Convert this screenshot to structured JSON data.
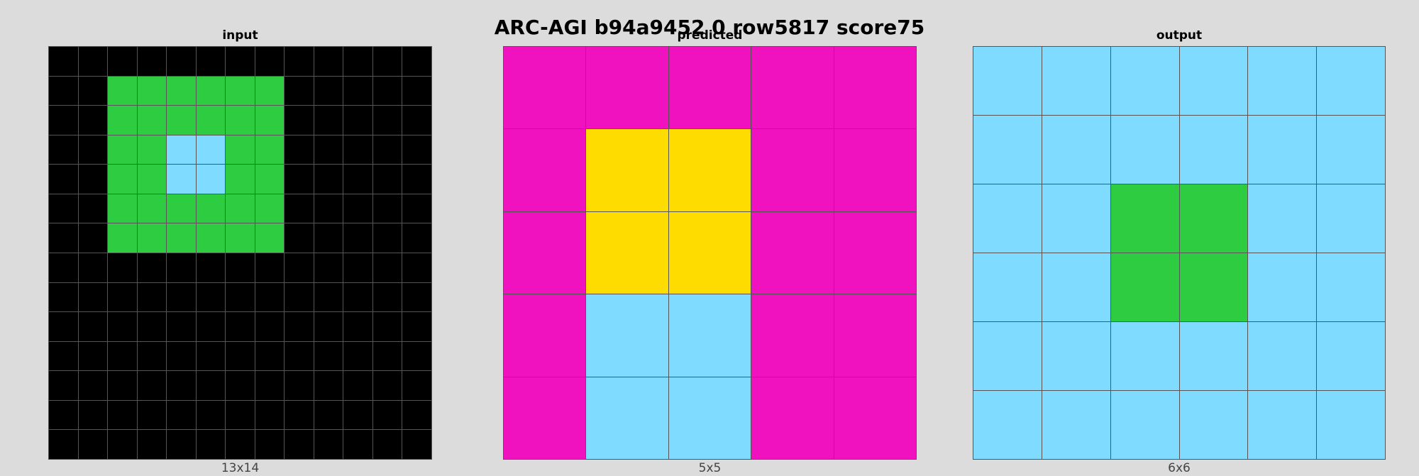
{
  "title": "ARC-AGI b94a9452 0 row5817 score75",
  "palette": {
    "0": "#000000",
    "3": "#2ECC40",
    "4": "#FFDC00",
    "6": "#F012BE",
    "8": "#7FDBFF"
  },
  "panels": [
    {
      "key": "input",
      "label": "input",
      "size_label": "13x14",
      "cols": 13,
      "rows": 14,
      "cells": [
        [
          0,
          0,
          0,
          0,
          0,
          0,
          0,
          0,
          0,
          0,
          0,
          0,
          0
        ],
        [
          0,
          0,
          3,
          3,
          3,
          3,
          3,
          3,
          0,
          0,
          0,
          0,
          0
        ],
        [
          0,
          0,
          3,
          3,
          3,
          3,
          3,
          3,
          0,
          0,
          0,
          0,
          0
        ],
        [
          0,
          0,
          3,
          3,
          8,
          8,
          3,
          3,
          0,
          0,
          0,
          0,
          0
        ],
        [
          0,
          0,
          3,
          3,
          8,
          8,
          3,
          3,
          0,
          0,
          0,
          0,
          0
        ],
        [
          0,
          0,
          3,
          3,
          3,
          3,
          3,
          3,
          0,
          0,
          0,
          0,
          0
        ],
        [
          0,
          0,
          3,
          3,
          3,
          3,
          3,
          3,
          0,
          0,
          0,
          0,
          0
        ],
        [
          0,
          0,
          0,
          0,
          0,
          0,
          0,
          0,
          0,
          0,
          0,
          0,
          0
        ],
        [
          0,
          0,
          0,
          0,
          0,
          0,
          0,
          0,
          0,
          0,
          0,
          0,
          0
        ],
        [
          0,
          0,
          0,
          0,
          0,
          0,
          0,
          0,
          0,
          0,
          0,
          0,
          0
        ],
        [
          0,
          0,
          0,
          0,
          0,
          0,
          0,
          0,
          0,
          0,
          0,
          0,
          0
        ],
        [
          0,
          0,
          0,
          0,
          0,
          0,
          0,
          0,
          0,
          0,
          0,
          0,
          0
        ],
        [
          0,
          0,
          0,
          0,
          0,
          0,
          0,
          0,
          0,
          0,
          0,
          0,
          0
        ],
        [
          0,
          0,
          0,
          0,
          0,
          0,
          0,
          0,
          0,
          0,
          0,
          0,
          0
        ]
      ]
    },
    {
      "key": "predicted",
      "label": "predicted",
      "size_label": "5x5",
      "cols": 5,
      "rows": 5,
      "cells": [
        [
          6,
          6,
          6,
          6,
          6
        ],
        [
          6,
          4,
          4,
          6,
          6
        ],
        [
          6,
          4,
          4,
          6,
          6
        ],
        [
          6,
          8,
          8,
          6,
          6
        ],
        [
          6,
          8,
          8,
          6,
          6
        ]
      ]
    },
    {
      "key": "output",
      "label": "output",
      "size_label": "6x6",
      "cols": 6,
      "rows": 6,
      "cells": [
        [
          8,
          8,
          8,
          8,
          8,
          8
        ],
        [
          8,
          8,
          8,
          8,
          8,
          8
        ],
        [
          8,
          8,
          3,
          3,
          8,
          8
        ],
        [
          8,
          8,
          3,
          3,
          8,
          8
        ],
        [
          8,
          8,
          8,
          8,
          8,
          8
        ],
        [
          8,
          8,
          8,
          8,
          8,
          8
        ]
      ]
    }
  ]
}
